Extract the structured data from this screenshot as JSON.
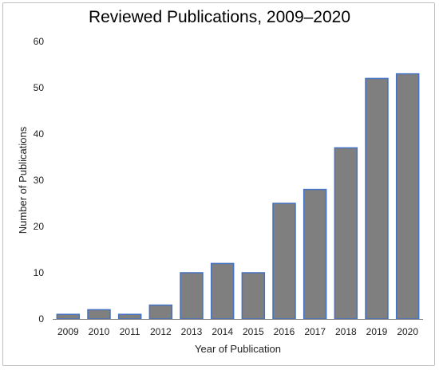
{
  "chart_data": {
    "type": "bar",
    "title": "Reviewed Publications, 2009–2020",
    "xlabel": "Year of Publication",
    "ylabel": "Number of Publications",
    "categories": [
      "2009",
      "2010",
      "2011",
      "2012",
      "2013",
      "2014",
      "2015",
      "2016",
      "2017",
      "2018",
      "2019",
      "2020"
    ],
    "values": [
      1,
      2,
      1,
      3,
      10,
      12,
      10,
      25,
      28,
      37,
      52,
      53
    ],
    "ylim": [
      0,
      60
    ],
    "yticks": [
      0,
      10,
      20,
      30,
      40,
      50,
      60
    ],
    "grid": false,
    "legend": "none",
    "colors": {
      "bar_fill": "#7f7f7f",
      "bar_stroke": "#4472c4",
      "axis": "#808080"
    }
  }
}
